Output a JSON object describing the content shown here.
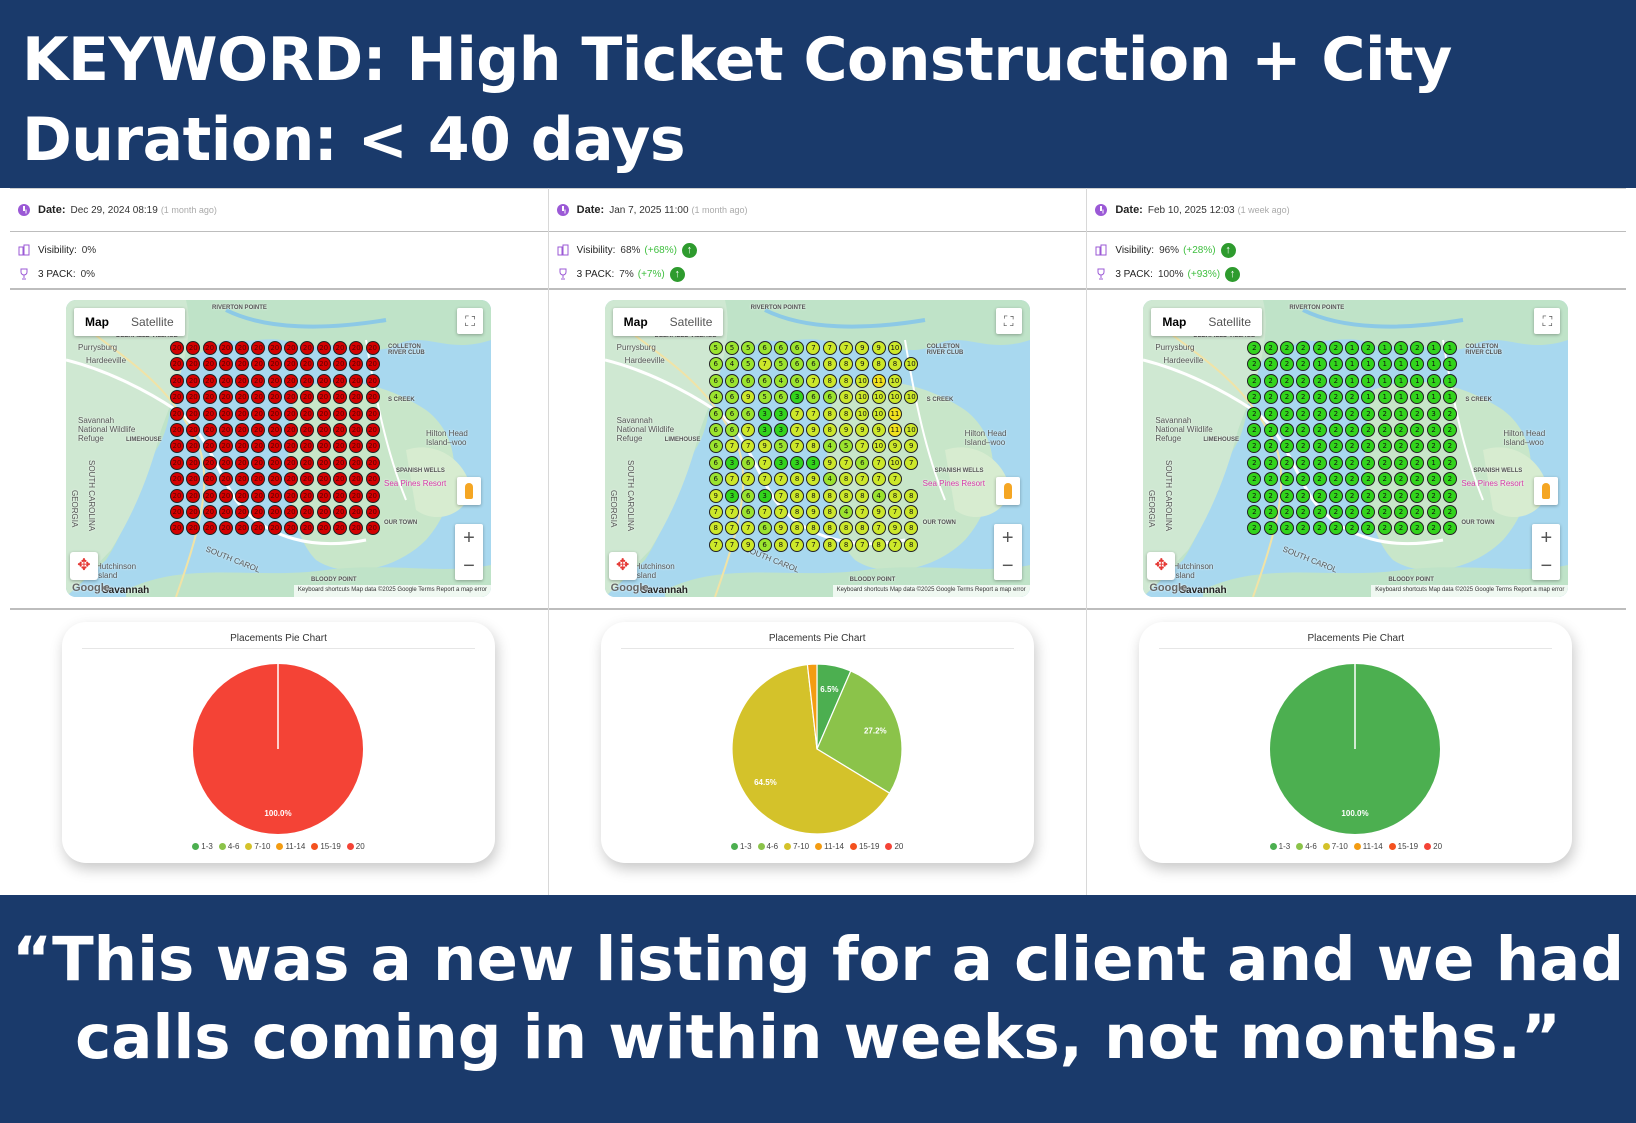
{
  "header": {
    "line1": "KEYWORD: High Ticket Construction + City",
    "line2": "Duration: < 40 days"
  },
  "footer": {
    "line1": "“This was a new listing for a client and we had",
    "line2": "calls coming in within weeks, not months.”"
  },
  "labels": {
    "date": "Date:",
    "visibility": "Visibility:",
    "pack": "3 PACK:",
    "map": "Map",
    "satellite": "Satellite",
    "pie_title": "Placements Pie Chart",
    "zoom_in": "+",
    "zoom_out": "−",
    "google": "Google",
    "attribution": "Keyboard shortcuts   Map data ©2025 Google   Terms   Report a map error"
  },
  "map_labels": {
    "riverton": "RIVERTON POINTE",
    "deerfield": "DEERFIELD VILLAGE",
    "purrysburg": "Purrysburg",
    "hardeeville": "Hardeeville",
    "colleton": "COLLETON RIVER CLUB",
    "creek": "S CREEK",
    "savannah_refuge": "Savannah National Wildlife Refuge",
    "limehouse": "LIMEHOUSE",
    "hilton": "Hilton Head Island–woo",
    "sc": "SOUTH CAROLINA",
    "georgia": "GEORGIA",
    "spanish": "SPANISH WELLS",
    "sea_pines": "Sea Pines Resort",
    "town": "OUR TOWN",
    "hutchinson": "Hutchinson Island",
    "bloody": "BLOODY POINT",
    "south_carol": "SOUTH CAROL",
    "savannah": "Savannah"
  },
  "legend": [
    {
      "label": "1-3",
      "color": "#4caf50"
    },
    {
      "label": "4-6",
      "color": "#8bc34a"
    },
    {
      "label": "7-10",
      "color": "#d4c22a"
    },
    {
      "label": "11-14",
      "color": "#f39c12"
    },
    {
      "label": "15-19",
      "color": "#f4511e"
    },
    {
      "label": "20",
      "color": "#f44336"
    }
  ],
  "panels": [
    {
      "date": "Dec 29, 2024 08:19",
      "ago": "(1 month ago)",
      "visibility": "0%",
      "visibility_delta": "",
      "pack": "0%",
      "pack_delta": "",
      "grid": [
        "20 20 20 20 20 20 20 20 20 20 20 20 20",
        "20 20 20 20 20 20 20 20 20 20 20 20 20",
        "20 20 20 20 20 20 20 20 20 20 20 20 20",
        "20 20 20 20 20 20 20 20 20 20 20 20 20",
        "20 20 20 20 20 20 20 20 20 20 20 20 20",
        "20 20 20 20 20 20 20 20 20 20 20 20 20",
        "20 20 20 20 20 20 20 20 20 20 20 20 20",
        "20 20 20 20 20 20 20 20 20 20 20 20 20",
        "20 20 20 20 20 20 20 20 20 20 20 20 20",
        "20 20 20 20 20 20 20 20 20 20 20 20 20",
        "20 20 20 20 20 20 20 20 20 20 20 20 20",
        "20 20 20 20 20 20 20 20 20 20 20 20 20"
      ],
      "chart_data": {
        "type": "pie",
        "title": "Placements Pie Chart",
        "slices": [
          {
            "label": "20",
            "value": 100.0,
            "color": "#f44336",
            "text": "100.0%"
          }
        ]
      }
    },
    {
      "date": "Jan 7, 2025 11:00",
      "ago": "(1 month ago)",
      "visibility": "68%",
      "visibility_delta": "(+68%)",
      "pack": "7%",
      "pack_delta": "(+7%)",
      "grid": [
        "5 5 5 6 6 6 7 7 7 9 9 10",
        "6 4 5 7 5 6 6 8 8 9 8 8 10",
        "6 6 6 6 4 6 7 8 8 10 11 10",
        "4 6 9 5 6 3 6 6 8 10 10 10 10",
        "6 6 6 3 3 7 7 8 8 10 10 11",
        "6 6 7 3 3 7 9 8 9 9 9 11 10",
        "6 7 7 9 5 7 8 4 5 7 10 9 9",
        "6 3 6 7 3 3 3 9 7 6 7 10 7",
        "6 7 7 7 7 8 9 4 8 7 7 7",
        "9 3 6 3 7 8 8 8 8 8 4 8 8",
        "7 7 6 7 7 8 9 8 4 7 9 7 8",
        "8 7 7 6 9 8 8 8 8 8 7 9 8",
        "7 7 9 6 8 7 7 8 8 7 8 7 8"
      ],
      "chart_data": {
        "type": "pie",
        "title": "Placements Pie Chart",
        "slices": [
          {
            "label": "1-3",
            "value": 6.5,
            "color": "#4caf50",
            "text": "6.5%"
          },
          {
            "label": "4-6",
            "value": 27.2,
            "color": "#8bc34a",
            "text": "27.2%"
          },
          {
            "label": "7-10",
            "value": 64.5,
            "color": "#d4c22a",
            "text": "64.5%"
          },
          {
            "label": "11-14",
            "value": 1.8,
            "color": "#f39c12",
            "text": ""
          }
        ]
      }
    },
    {
      "date": "Feb 10, 2025 12:03",
      "ago": "(1 week ago)",
      "visibility": "96%",
      "visibility_delta": "(+28%)",
      "pack": "100%",
      "pack_delta": "(+93%)",
      "grid": [
        "2 2 2 2 2 2 1 2 1 1 2 1 1",
        "2 2 2 2 1 1 1 1 1 1 1 1 1",
        "2 2 2 2 2 2 1 1 1 1 1 1 1",
        "2 2 2 2 2 2 2 1 1 1 1 1 1",
        "2 2 2 2 2 2 2 2 2 1 2 3 2",
        "2 2 2 2 2 2 2 2 2 2 2 2 2",
        "2 2 2 2 2 2 2 2 2 2 2 2 2",
        "2 2 2 2 2 2 2 2 2 2 2 1 2",
        "2 2 2 2 2 2 2 2 2 2 2 2 2",
        "2 2 2 2 2 2 2 2 2 2 2 2 2",
        "2 2 2 2 2 2 2 2 2 2 2 2 2",
        "2 2 2 2 2 2 2 2 2 2 2 2 2"
      ],
      "chart_data": {
        "type": "pie",
        "title": "Placements Pie Chart",
        "slices": [
          {
            "label": "1-3",
            "value": 100.0,
            "color": "#4caf50",
            "text": "100.0%"
          }
        ]
      }
    }
  ]
}
